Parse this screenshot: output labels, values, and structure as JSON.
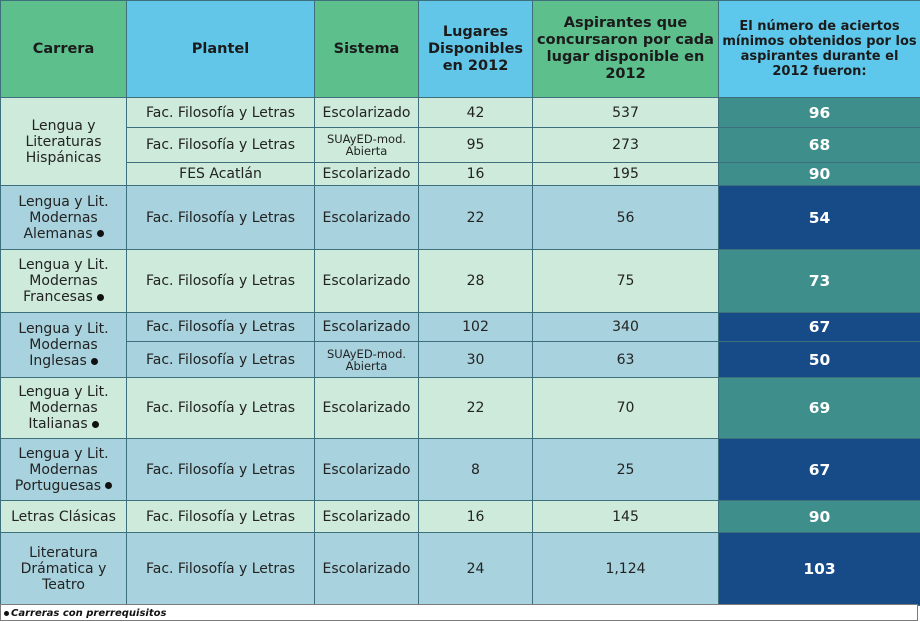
{
  "header": {
    "carrera": "Carrera",
    "plantel": "Plantel",
    "sistema": "Sistema",
    "lugares": "Lugares Disponibles en 2012",
    "aspirantes": "Aspirantes que concursaron por cada lugar disponible en 2012",
    "aciertos": "El número de aciertos mínimos obtenidos por los aspirantes durante el 2012 fueron:"
  },
  "rows": [
    {
      "carrera": "Lengua y Literaturas Hispánicas",
      "plantel": "Fac. Filosofía y Letras",
      "sistema": "Escolarizado",
      "lugares": "42",
      "aspirantes": "537",
      "aciertos": "96"
    },
    {
      "plantel": "Fac. Filosofía y Letras",
      "sistema": "SUAyED-mod. Abierta",
      "lugares": "95",
      "aspirantes": "273",
      "aciertos": "68"
    },
    {
      "plantel": "FES Acatlán",
      "sistema": "Escolarizado",
      "lugares": "16",
      "aspirantes": "195",
      "aciertos": "90"
    },
    {
      "carrera": "Lengua y Lit. Modernas Alemanas",
      "plantel": "Fac. Filosofía y Letras",
      "sistema": "Escolarizado",
      "lugares": "22",
      "aspirantes": "56",
      "aciertos": "54"
    },
    {
      "carrera": "Lengua y Lit. Modernas Francesas",
      "plantel": "Fac. Filosofía y Letras",
      "sistema": "Escolarizado",
      "lugares": "28",
      "aspirantes": "75",
      "aciertos": "73"
    },
    {
      "carrera": "Lengua y Lit. Modernas Inglesas",
      "plantel": "Fac. Filosofía y Letras",
      "sistema": "Escolarizado",
      "lugares": "102",
      "aspirantes": "340",
      "aciertos": "67"
    },
    {
      "plantel": "Fac. Filosofía y Letras",
      "sistema": "SUAyED-mod. Abierta",
      "lugares": "30",
      "aspirantes": "63",
      "aciertos": "50"
    },
    {
      "carrera": "Lengua y Lit. Modernas Italianas",
      "plantel": "Fac. Filosofía y Letras",
      "sistema": "Escolarizado",
      "lugares": "22",
      "aspirantes": "70",
      "aciertos": "69"
    },
    {
      "carrera": "Lengua y Lit. Modernas Portuguesas",
      "plantel": "Fac. Filosofía y Letras",
      "sistema": "Escolarizado",
      "lugares": "8",
      "aspirantes": "25",
      "aciertos": "67"
    },
    {
      "carrera": "Letras Clásicas",
      "plantel": "Fac. Filosofía y Letras",
      "sistema": "Escolarizado",
      "lugares": "16",
      "aspirantes": "145",
      "aciertos": "90"
    },
    {
      "carrera": "Literatura Drámatica y Teatro",
      "plantel": "Fac. Filosofía y Letras",
      "sistema": "Escolarizado",
      "lugares": "24",
      "aspirantes": "1,124",
      "aciertos": "103"
    }
  ],
  "footnote": "Carreras con prerrequisitos",
  "colors": {
    "header_green": "#5cbf8c",
    "header_blue": "#62c6e9",
    "teal": "#3e8f8c",
    "navy": "#174b88",
    "row_light": "#cdeada",
    "row_blue": "#a8d2dd"
  }
}
